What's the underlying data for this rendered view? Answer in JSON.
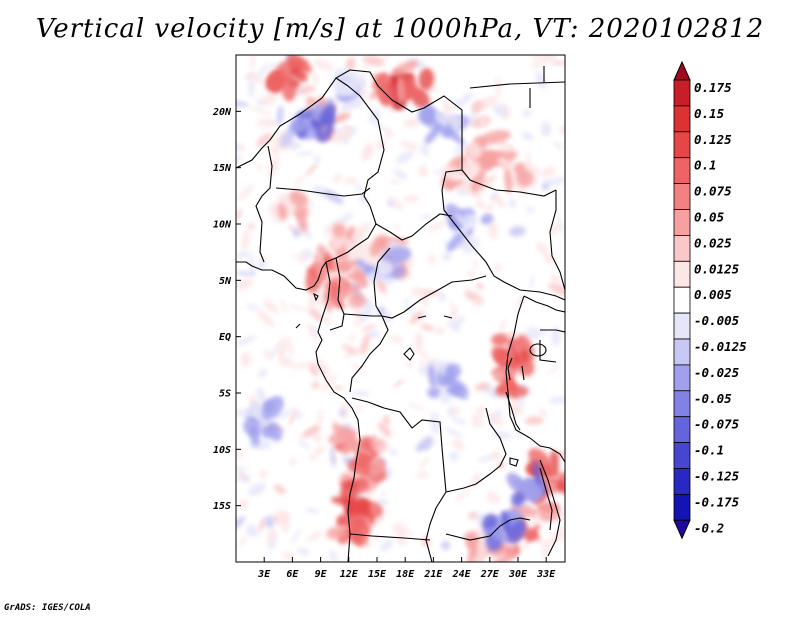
{
  "title": "Vertical velocity [m/s] at 1000hPa, VT: 2020102812",
  "credit": "GrADS: IGES/COLA",
  "map": {
    "lat_labels": [
      "20N",
      "15N",
      "10N",
      "5N",
      "EQ",
      "5S",
      "10S",
      "15S"
    ],
    "lat_values": [
      20,
      15,
      10,
      5,
      0,
      -5,
      -10,
      -15
    ],
    "lon_labels": [
      "3E",
      "6E",
      "9E",
      "12E",
      "15E",
      "18E",
      "21E",
      "24E",
      "27E",
      "30E",
      "33E"
    ],
    "lon_values": [
      3,
      6,
      9,
      12,
      15,
      18,
      21,
      24,
      27,
      30,
      33
    ],
    "lon_range": [
      0,
      35
    ],
    "lat_range": [
      -20,
      25
    ]
  },
  "colorbar": {
    "labels": [
      "0.175",
      "0.15",
      "0.125",
      "0.1",
      "0.075",
      "0.05",
      "0.025",
      "0.0125",
      "0.005",
      "-0.005",
      "-0.0125",
      "-0.025",
      "-0.05",
      "-0.075",
      "-0.1",
      "-0.125",
      "-0.175",
      "-0.2"
    ],
    "colors": [
      "#b40f1e",
      "#c81e28",
      "#dc3232",
      "#e64646",
      "#ee6464",
      "#f28282",
      "#f6a0a0",
      "#fac8c8",
      "#fde6e6",
      "#ffffff",
      "#e6e6fa",
      "#c8c8f4",
      "#a0a0ee",
      "#8282e6",
      "#6464dc",
      "#4646d2",
      "#2828c3",
      "#1414b4",
      "#1e0aa0"
    ],
    "top_color": "#a00a1e",
    "bottom_color": "#1e0aa0"
  },
  "field_patches": {
    "positive": [
      {
        "lon": 5.5,
        "lat": 23.2,
        "level": 3
      },
      {
        "lon": 18.5,
        "lat": 21.8,
        "level": 4
      },
      {
        "lon": 17.0,
        "lat": 22.5,
        "level": 2
      },
      {
        "lon": 9.5,
        "lat": 19.0,
        "level": 1
      },
      {
        "lon": 27.0,
        "lat": 16.5,
        "level": 1
      },
      {
        "lon": 30.0,
        "lat": 14.5,
        "level": 1
      },
      {
        "lon": 24.0,
        "lat": 14.0,
        "level": 1
      },
      {
        "lon": 12.0,
        "lat": 8.5,
        "level": 1
      },
      {
        "lon": 10.0,
        "lat": 6.0,
        "level": 2
      },
      {
        "lon": 11.5,
        "lat": 4.5,
        "level": 2
      },
      {
        "lon": 16.0,
        "lat": 7.5,
        "level": 1
      },
      {
        "lon": 29.5,
        "lat": -1.5,
        "level": 3
      },
      {
        "lon": 30.0,
        "lat": -3.5,
        "level": 2
      },
      {
        "lon": 13.0,
        "lat": -9.5,
        "level": 2
      },
      {
        "lon": 13.5,
        "lat": -12.0,
        "level": 2
      },
      {
        "lon": 13.0,
        "lat": -15.0,
        "level": 3
      },
      {
        "lon": 12.5,
        "lat": -17.5,
        "level": 2
      },
      {
        "lon": 33.5,
        "lat": -12.0,
        "level": 3
      },
      {
        "lon": 32.0,
        "lat": -14.5,
        "level": 2
      },
      {
        "lon": 30.0,
        "lat": -18.0,
        "level": 2
      },
      {
        "lon": 27.0,
        "lat": -19.0,
        "level": 1
      },
      {
        "lon": 6.0,
        "lat": 11.0,
        "level": 1
      }
    ],
    "negative": [
      {
        "lon": 8.5,
        "lat": 19.5,
        "level": 2
      },
      {
        "lon": 13.0,
        "lat": 22.0,
        "level": 1
      },
      {
        "lon": 22.0,
        "lat": 18.5,
        "level": 1
      },
      {
        "lon": 15.5,
        "lat": 6.5,
        "level": 1
      },
      {
        "lon": 31.0,
        "lat": -13.5,
        "level": 2
      },
      {
        "lon": 28.5,
        "lat": -17.0,
        "level": 2
      },
      {
        "lon": 3.0,
        "lat": -7.5,
        "level": 1
      },
      {
        "lon": 22.0,
        "lat": -4.0,
        "level": 1
      },
      {
        "lon": 25.0,
        "lat": 9.5,
        "level": 1
      }
    ]
  }
}
